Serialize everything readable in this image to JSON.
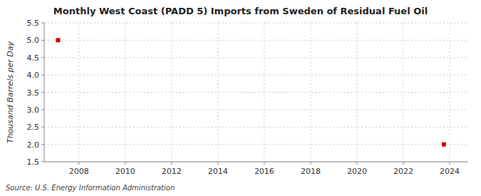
{
  "chart_data": {
    "type": "scatter",
    "title": "Monthly West Coast (PADD 5) Imports from Sweden of Residual Fuel Oil",
    "y_label": "Thousand Barrels per Day",
    "source": "Source: U.S. Energy Information Administration",
    "x": [
      2007.1,
      2023.75
    ],
    "values": [
      5.0,
      2.0
    ],
    "color": "#cc0000",
    "marker": "square",
    "xlim": [
      2006.5,
      2024.8
    ],
    "ylim": [
      1.5,
      5.5
    ],
    "xticks": [
      2008,
      2010,
      2012,
      2014,
      2016,
      2018,
      2020,
      2022,
      2024
    ],
    "yticks": [
      1.5,
      {
        "value": 2.0,
        "label": "2.0"
      },
      2.5,
      {
        "value": 3.0,
        "label": "3.0"
      },
      3.5,
      {
        "value": 4.0,
        "label": "4.0"
      },
      4.5,
      {
        "value": 5.0,
        "label": "5.0"
      },
      5.5
    ],
    "grid": true
  }
}
